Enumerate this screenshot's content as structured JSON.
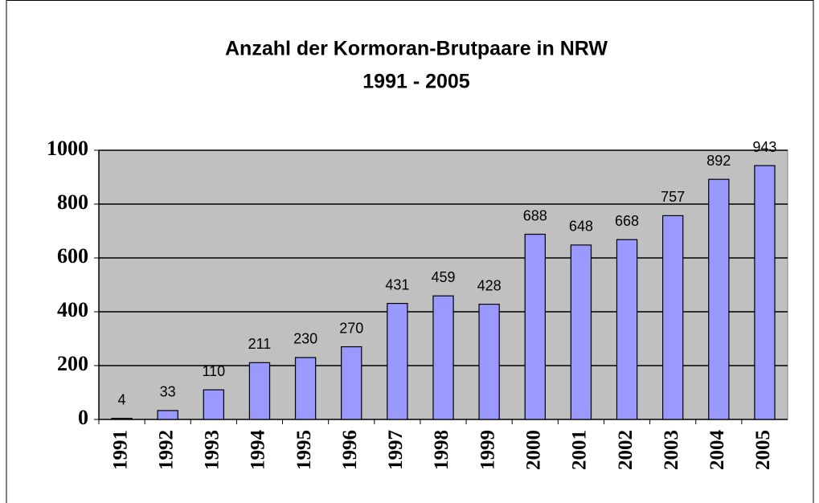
{
  "chart_data": {
    "type": "bar",
    "title": "Anzahl der Kormoran-Brutpaare in NRW",
    "subtitle": "1991 - 2005",
    "categories": [
      "1991",
      "1992",
      "1993",
      "1994",
      "1995",
      "1996",
      "1997",
      "1998",
      "1999",
      "2000",
      "2001",
      "2002",
      "2003",
      "2004",
      "2005"
    ],
    "values": [
      4,
      33,
      110,
      211,
      230,
      270,
      431,
      459,
      428,
      688,
      648,
      668,
      757,
      892,
      943
    ],
    "color": "#9999ff",
    "ylim": [
      0,
      1000
    ],
    "yticks": [
      0,
      200,
      400,
      600,
      800,
      1000
    ],
    "grid": true
  }
}
